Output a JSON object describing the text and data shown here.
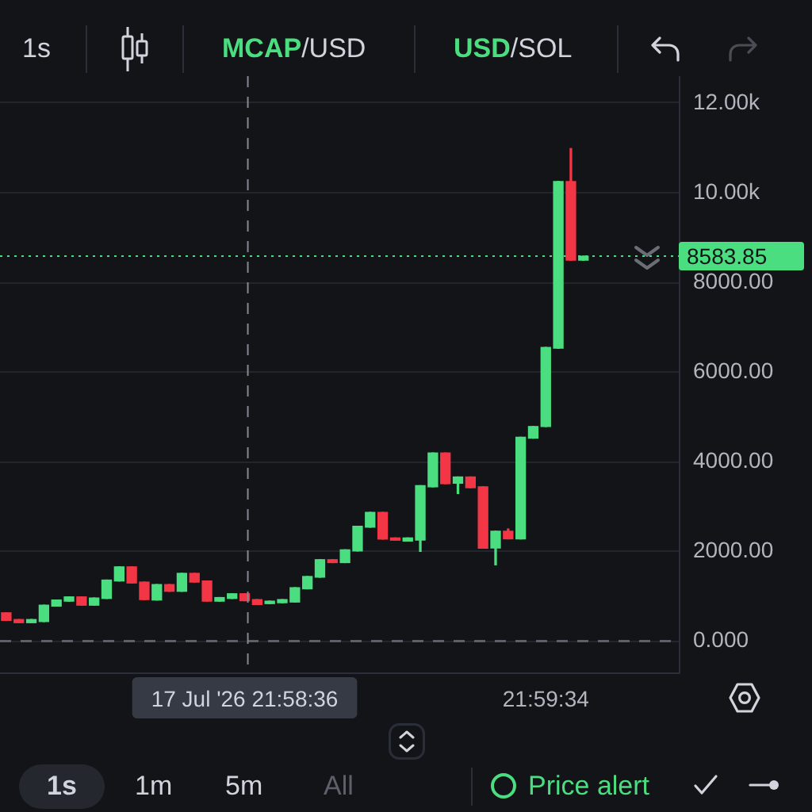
{
  "chart_data": {
    "type": "candlestick",
    "categories": [
      null,
      null,
      null,
      null,
      null,
      null,
      null,
      null,
      null,
      null,
      null,
      null,
      null,
      null,
      null,
      null,
      null,
      null,
      null,
      "17 Jul '26 21:58:36",
      null,
      null,
      null,
      null,
      null,
      null,
      null,
      null,
      null,
      null,
      null,
      null,
      null,
      null,
      null,
      null,
      null,
      null,
      null,
      null,
      null,
      null,
      null,
      "21:59:34",
      null,
      null,
      null
    ],
    "ohlc": [
      [
        630,
        630,
        460,
        460
      ],
      [
        480,
        480,
        410,
        410
      ],
      [
        410,
        480,
        410,
        480
      ],
      [
        435,
        800,
        435,
        800
      ],
      [
        780,
        915,
        780,
        915
      ],
      [
        890,
        985,
        890,
        985
      ],
      [
        985,
        985,
        800,
        800
      ],
      [
        800,
        960,
        800,
        960
      ],
      [
        950,
        1360,
        950,
        1360
      ],
      [
        1340,
        1655,
        1340,
        1655
      ],
      [
        1655,
        1655,
        1295,
        1295
      ],
      [
        1315,
        1315,
        925,
        925
      ],
      [
        915,
        1260,
        915,
        1260
      ],
      [
        1260,
        1260,
        1110,
        1110
      ],
      [
        1110,
        1510,
        1110,
        1510
      ],
      [
        1510,
        1510,
        1315,
        1315
      ],
      [
        1340,
        1340,
        890,
        890
      ],
      [
        890,
        970,
        890,
        970
      ],
      [
        950,
        1055,
        950,
        1055
      ],
      [
        1055,
        1055,
        900,
        900
      ],
      [
        925,
        925,
        815,
        815
      ],
      [
        835,
        890,
        835,
        890
      ],
      [
        855,
        925,
        855,
        925
      ],
      [
        870,
        1190,
        870,
        1190
      ],
      [
        1165,
        1440,
        1165,
        1440
      ],
      [
        1425,
        1815,
        1425,
        1815
      ],
      [
        1815,
        1815,
        1750,
        1750
      ],
      [
        1750,
        2035,
        1750,
        2035
      ],
      [
        2010,
        2560,
        2010,
        2560
      ],
      [
        2540,
        2870,
        2540,
        2870
      ],
      [
        2870,
        2870,
        2275,
        2275
      ],
      [
        2300,
        2300,
        2250,
        2250
      ],
      [
        2230,
        2300,
        2230,
        2300
      ],
      [
        2250,
        3465,
        2000,
        3465
      ],
      [
        3440,
        4195,
        3440,
        4195
      ],
      [
        4195,
        4195,
        3510,
        3510
      ],
      [
        3520,
        3660,
        3290,
        3660
      ],
      [
        3660,
        3660,
        3420,
        3420
      ],
      [
        3440,
        3440,
        2070,
        2070
      ],
      [
        2075,
        2450,
        1700,
        2450
      ],
      [
        2450,
        2500,
        2280,
        2280
      ],
      [
        2280,
        4545,
        2280,
        4545
      ],
      [
        4525,
        4785,
        4525,
        4785
      ],
      [
        4785,
        6550,
        4785,
        6550
      ],
      [
        6530,
        10250,
        6530,
        10250
      ],
      [
        10250,
        10985,
        8495,
        8495
      ],
      [
        8495,
        8583.85,
        8495,
        8583.85
      ]
    ],
    "colors": [
      "#f23645",
      "#f23645",
      "#4ade80",
      "#4ade80",
      "#4ade80",
      "#4ade80",
      "#f23645",
      "#4ade80",
      "#4ade80",
      "#4ade80",
      "#f23645",
      "#f23645",
      "#4ade80",
      "#f23645",
      "#4ade80",
      "#f23645",
      "#f23645",
      "#4ade80",
      "#4ade80",
      "#f23645",
      "#f23645",
      "#4ade80",
      "#4ade80",
      "#4ade80",
      "#4ade80",
      "#4ade80",
      "#f23645",
      "#4ade80",
      "#4ade80",
      "#4ade80",
      "#f23645",
      "#f23645",
      "#4ade80",
      "#4ade80",
      "#4ade80",
      "#f23645",
      "#4ade80",
      "#f23645",
      "#f23645",
      "#4ade80",
      "#f23645",
      "#4ade80",
      "#4ade80",
      "#4ade80",
      "#4ade80",
      "#f23645",
      "#4ade80"
    ],
    "ylim": [
      -700,
      12600
    ],
    "yticks": [
      {
        "value": 0,
        "label": "0.000"
      },
      {
        "value": 2000,
        "label": "2000.00"
      },
      {
        "value": 4000,
        "label": "4000.00"
      },
      {
        "value": 6000,
        "label": "6000.00"
      },
      {
        "value": 8000,
        "label": "8000.00"
      },
      {
        "value": 10000,
        "label": "10.00k"
      },
      {
        "value": 12000,
        "label": "12.00k"
      }
    ],
    "grid": "y",
    "ref_lines": [
      {
        "axis": "y",
        "value": 8583.85,
        "label": "8583.85",
        "color": "#4ade80",
        "line_style": "dotted"
      },
      {
        "axis": "y",
        "value": 0,
        "color": "#5d606b",
        "line_style": "dashed"
      },
      {
        "axis": "x",
        "value": "17 Jul '26 21:58:36",
        "color": "#868993",
        "line_style": "dashed"
      }
    ],
    "annotations": [
      "1s",
      "MCAP/USD",
      "USD/SOL",
      "1s",
      "1m",
      "5m",
      "All",
      "Price alert"
    ]
  }
}
